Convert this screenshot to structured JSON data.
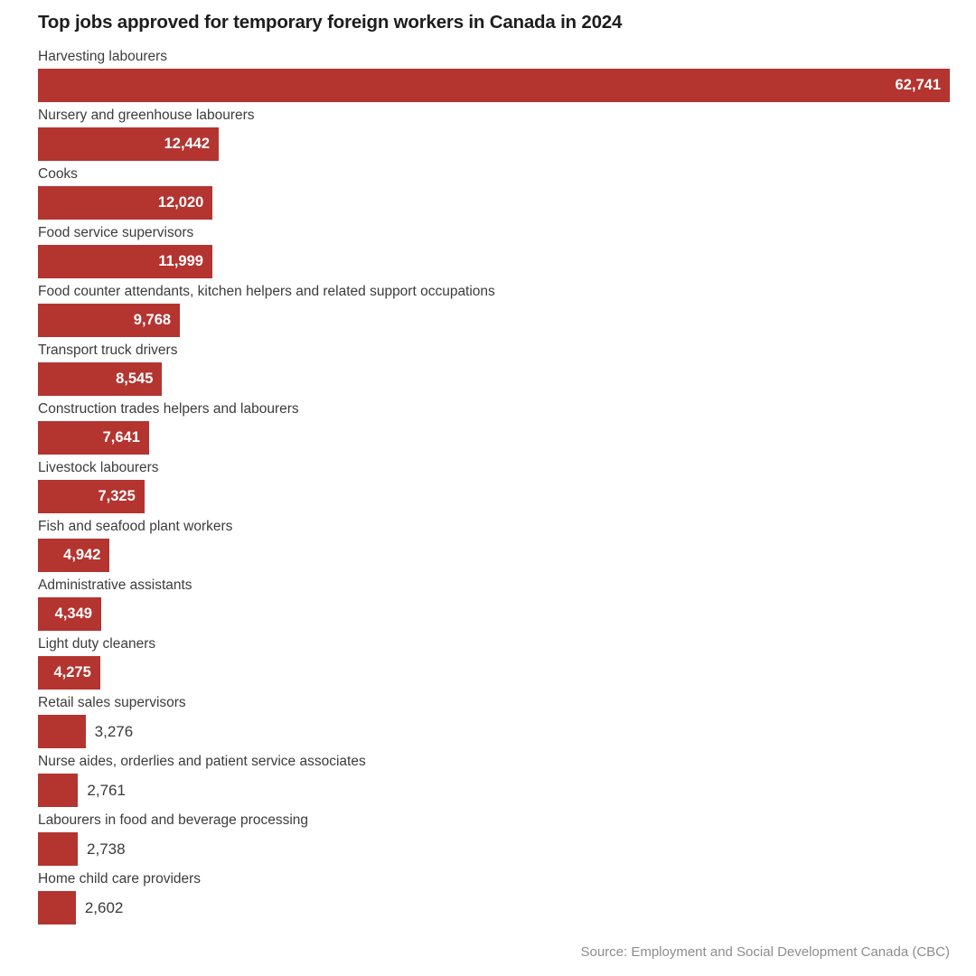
{
  "title": "Top jobs approved for temporary foreign workers in Canada in 2024",
  "source": "Source: Employment and Social Development Canada (CBC)",
  "colors": {
    "bar": "#b43430",
    "value_inside": "#ffffff",
    "value_outside": "#3a3a3a",
    "category_label": "#3c3c3c",
    "title": "#1d1d1d",
    "source": "#8d8d8d",
    "background": "#ffffff"
  },
  "chart_data": {
    "type": "bar",
    "orientation": "horizontal",
    "title": "Top jobs approved for temporary foreign workers in Canada in 2024",
    "xlabel": "",
    "ylabel": "",
    "xlim": [
      0,
      62741
    ],
    "grid": false,
    "legend": false,
    "value_label_inside_threshold": 4000,
    "categories": [
      "Harvesting labourers",
      "Nursery and greenhouse labourers",
      "Cooks",
      "Food service supervisors",
      "Food counter attendants, kitchen helpers and related support occupations",
      "Transport truck drivers",
      "Construction trades helpers and labourers",
      "Livestock labourers",
      "Fish and seafood plant workers",
      "Administrative assistants",
      "Light duty cleaners",
      "Retail sales supervisors",
      "Nurse aides, orderlies and patient service associates",
      "Labourers in food and beverage processing",
      "Home child care providers"
    ],
    "values": [
      62741,
      12442,
      12020,
      11999,
      9768,
      8545,
      7641,
      7325,
      4942,
      4349,
      4275,
      3276,
      2761,
      2738,
      2602
    ],
    "value_labels": [
      "62,741",
      "12,442",
      "12,020",
      "11,999",
      "9,768",
      "8,545",
      "7,641",
      "7,325",
      "4,942",
      "4,349",
      "4,275",
      "3,276",
      "2,761",
      "2,738",
      "2,602"
    ]
  }
}
